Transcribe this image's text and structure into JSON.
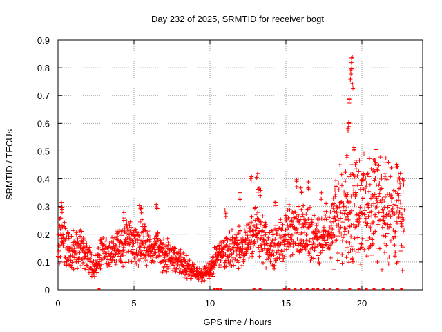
{
  "chart_data": {
    "type": "scatter",
    "title": "Day 232 of 2025, SRMTID for receiver bogt",
    "xlabel": "GPS time / hours",
    "ylabel": "SRMTID / TECUs",
    "xlim": [
      0,
      24
    ],
    "ylim": [
      0,
      0.9
    ],
    "xticks": [
      0,
      5,
      10,
      15,
      20
    ],
    "yticks": [
      0,
      0.1,
      0.2,
      0.3,
      0.4,
      0.5,
      0.6,
      0.7,
      0.8,
      0.9
    ],
    "xtick_labels": [
      "0",
      "5",
      "10",
      "15",
      "20"
    ],
    "ytick_labels": [
      "0",
      "0.1",
      "0.2",
      "0.3",
      "0.4",
      "0.5",
      "0.6",
      "0.7",
      "0.8",
      "0.9"
    ],
    "grid": true,
    "marker": "+",
    "color": "#ff0000",
    "series": [
      {
        "name": "SRMTID",
        "trend": [
          [
            0.0,
            0.15
          ],
          [
            0.2,
            0.22
          ],
          [
            0.5,
            0.15
          ],
          [
            1.0,
            0.14
          ],
          [
            1.5,
            0.15
          ],
          [
            2.0,
            0.12
          ],
          [
            2.3,
            0.07
          ],
          [
            2.6,
            0.12
          ],
          [
            3.0,
            0.13
          ],
          [
            3.5,
            0.14
          ],
          [
            4.0,
            0.15
          ],
          [
            4.5,
            0.17
          ],
          [
            5.0,
            0.16
          ],
          [
            5.5,
            0.18
          ],
          [
            6.0,
            0.14
          ],
          [
            6.5,
            0.15
          ],
          [
            7.0,
            0.13
          ],
          [
            7.5,
            0.12
          ],
          [
            8.0,
            0.1
          ],
          [
            8.5,
            0.08
          ],
          [
            9.0,
            0.06
          ],
          [
            9.5,
            0.05
          ],
          [
            10.0,
            0.07
          ],
          [
            10.5,
            0.13
          ],
          [
            11.0,
            0.14
          ],
          [
            11.5,
            0.15
          ],
          [
            12.0,
            0.15
          ],
          [
            12.5,
            0.17
          ],
          [
            13.0,
            0.2
          ],
          [
            13.5,
            0.18
          ],
          [
            14.0,
            0.16
          ],
          [
            14.5,
            0.17
          ],
          [
            15.0,
            0.19
          ],
          [
            15.5,
            0.22
          ],
          [
            16.0,
            0.21
          ],
          [
            16.5,
            0.2
          ],
          [
            17.0,
            0.19
          ],
          [
            17.5,
            0.2
          ],
          [
            18.0,
            0.21
          ],
          [
            18.5,
            0.26
          ],
          [
            19.0,
            0.28
          ],
          [
            19.5,
            0.27
          ],
          [
            20.0,
            0.3
          ],
          [
            20.5,
            0.3
          ],
          [
            21.0,
            0.3
          ],
          [
            21.5,
            0.28
          ],
          [
            22.0,
            0.27
          ],
          [
            22.5,
            0.28
          ],
          [
            22.8,
            0.28
          ]
        ],
        "peaks": [
          [
            0.2,
            0.32
          ],
          [
            0.25,
            0.3
          ],
          [
            0.7,
            0.22
          ],
          [
            4.3,
            0.28
          ],
          [
            5.4,
            0.31
          ],
          [
            5.5,
            0.3
          ],
          [
            6.5,
            0.31
          ],
          [
            11.0,
            0.29
          ],
          [
            12.0,
            0.35
          ],
          [
            12.7,
            0.41
          ],
          [
            13.1,
            0.43
          ],
          [
            13.2,
            0.37
          ],
          [
            13.3,
            0.36
          ],
          [
            14.3,
            0.33
          ],
          [
            15.7,
            0.4
          ],
          [
            16.0,
            0.37
          ],
          [
            16.5,
            0.39
          ],
          [
            17.3,
            0.35
          ],
          [
            18.3,
            0.4
          ],
          [
            18.9,
            0.43
          ],
          [
            19.0,
            0.5
          ],
          [
            19.1,
            0.6
          ],
          [
            19.15,
            0.61
          ],
          [
            19.2,
            0.7
          ],
          [
            19.25,
            0.78
          ],
          [
            19.3,
            0.82
          ],
          [
            19.35,
            0.84
          ],
          [
            19.4,
            0.75
          ],
          [
            19.5,
            0.53
          ],
          [
            19.6,
            0.48
          ],
          [
            20.0,
            0.4
          ],
          [
            20.8,
            0.45
          ],
          [
            20.9,
            0.48
          ],
          [
            21.5,
            0.43
          ],
          [
            22.3,
            0.46
          ],
          [
            22.4,
            0.42
          ]
        ],
        "zero_markers": [
          2.7,
          10.3,
          10.5,
          10.7,
          12.9,
          13.3,
          14.9,
          15.2,
          15.6,
          16.0,
          16.4,
          16.8,
          17.1,
          17.5,
          17.9,
          18.4,
          19.2,
          19.8,
          20.3,
          20.8,
          21.4,
          22.0,
          22.6
        ]
      }
    ]
  }
}
